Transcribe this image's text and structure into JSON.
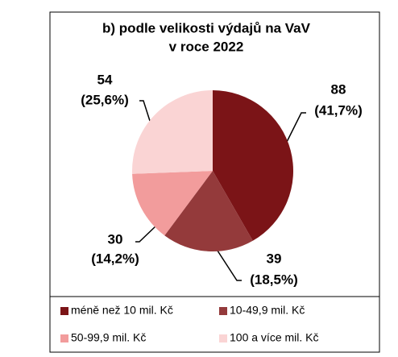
{
  "chart_data": {
    "type": "pie",
    "title": [
      "b) podle velikosti výdajů na VaV",
      "v roce 2022"
    ],
    "categories": [
      "méně než 10 mil. Kč",
      "10-49,9 mil. Kč",
      "50-99,9 mil. Kč",
      "100 a více mil. Kč"
    ],
    "values": [
      88,
      39,
      30,
      54
    ],
    "shares": [
      41.7,
      18.5,
      14.2,
      25.6
    ],
    "share_labels": [
      "(41,7%)",
      "(18,5%)",
      "(14,2%)",
      "(25,6%)"
    ],
    "colors": [
      "#7b1417",
      "#943a3b",
      "#f29c9c",
      "#fad4d4"
    ]
  }
}
